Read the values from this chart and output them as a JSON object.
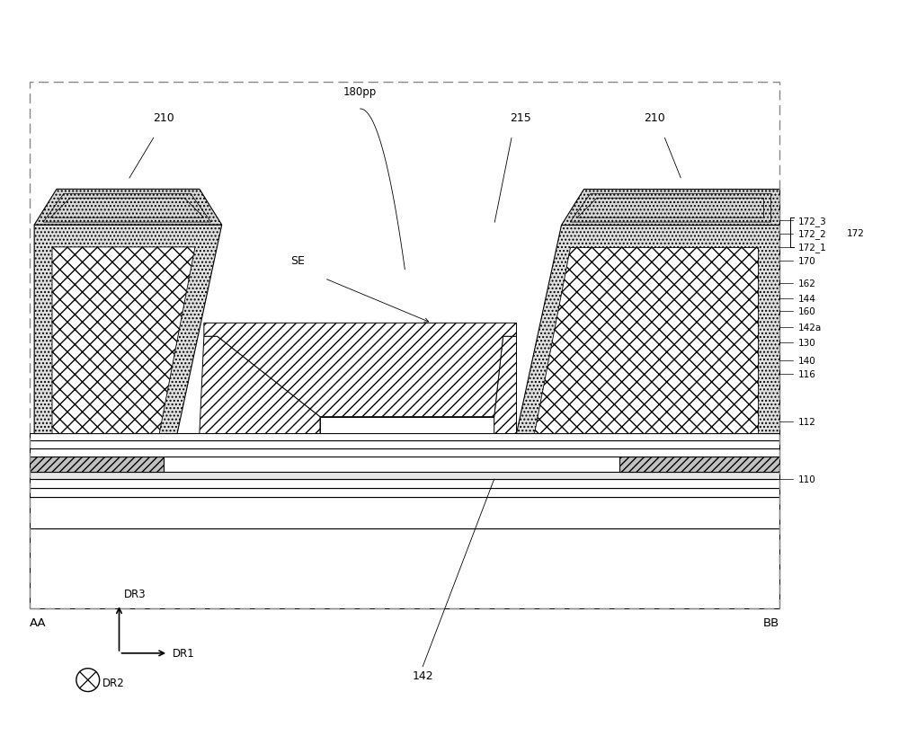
{
  "bg_color": "#ffffff",
  "line_color": "#000000",
  "fig_width": 10.0,
  "fig_height": 8.2,
  "labels": {
    "210_left": "210",
    "210_right": "210",
    "215": "215",
    "180pp": "180pp",
    "SE": "SE",
    "172_3": "172_3",
    "172_2": "172_2",
    "172": "172",
    "172_1": "172_1",
    "170": "170",
    "162": "162",
    "144": "144",
    "160": "160",
    "142a": "142a",
    "130": "130",
    "140": "140",
    "116": "116",
    "112": "112",
    "110": "110",
    "142": "142",
    "AA": "AA",
    "BB": "BB",
    "DR1": "DR1",
    "DR2": "DR2",
    "DR3": "DR3"
  },
  "right_labels": [
    {
      "text": "172_3",
      "y": 57.5
    },
    {
      "text": "172_2",
      "y": 56.0
    },
    {
      "text": "172_1",
      "y": 54.5
    },
    {
      "text": "170",
      "y": 53.0
    },
    {
      "text": "162",
      "y": 50.5
    },
    {
      "text": "144",
      "y": 48.8
    },
    {
      "text": "160",
      "y": 47.3
    },
    {
      "text": "142a",
      "y": 45.5
    },
    {
      "text": "130",
      "y": 43.8
    },
    {
      "text": "140",
      "y": 41.8
    },
    {
      "text": "116",
      "y": 40.3
    },
    {
      "text": "112",
      "y": 35.0
    },
    {
      "text": "110",
      "y": 28.5
    }
  ]
}
